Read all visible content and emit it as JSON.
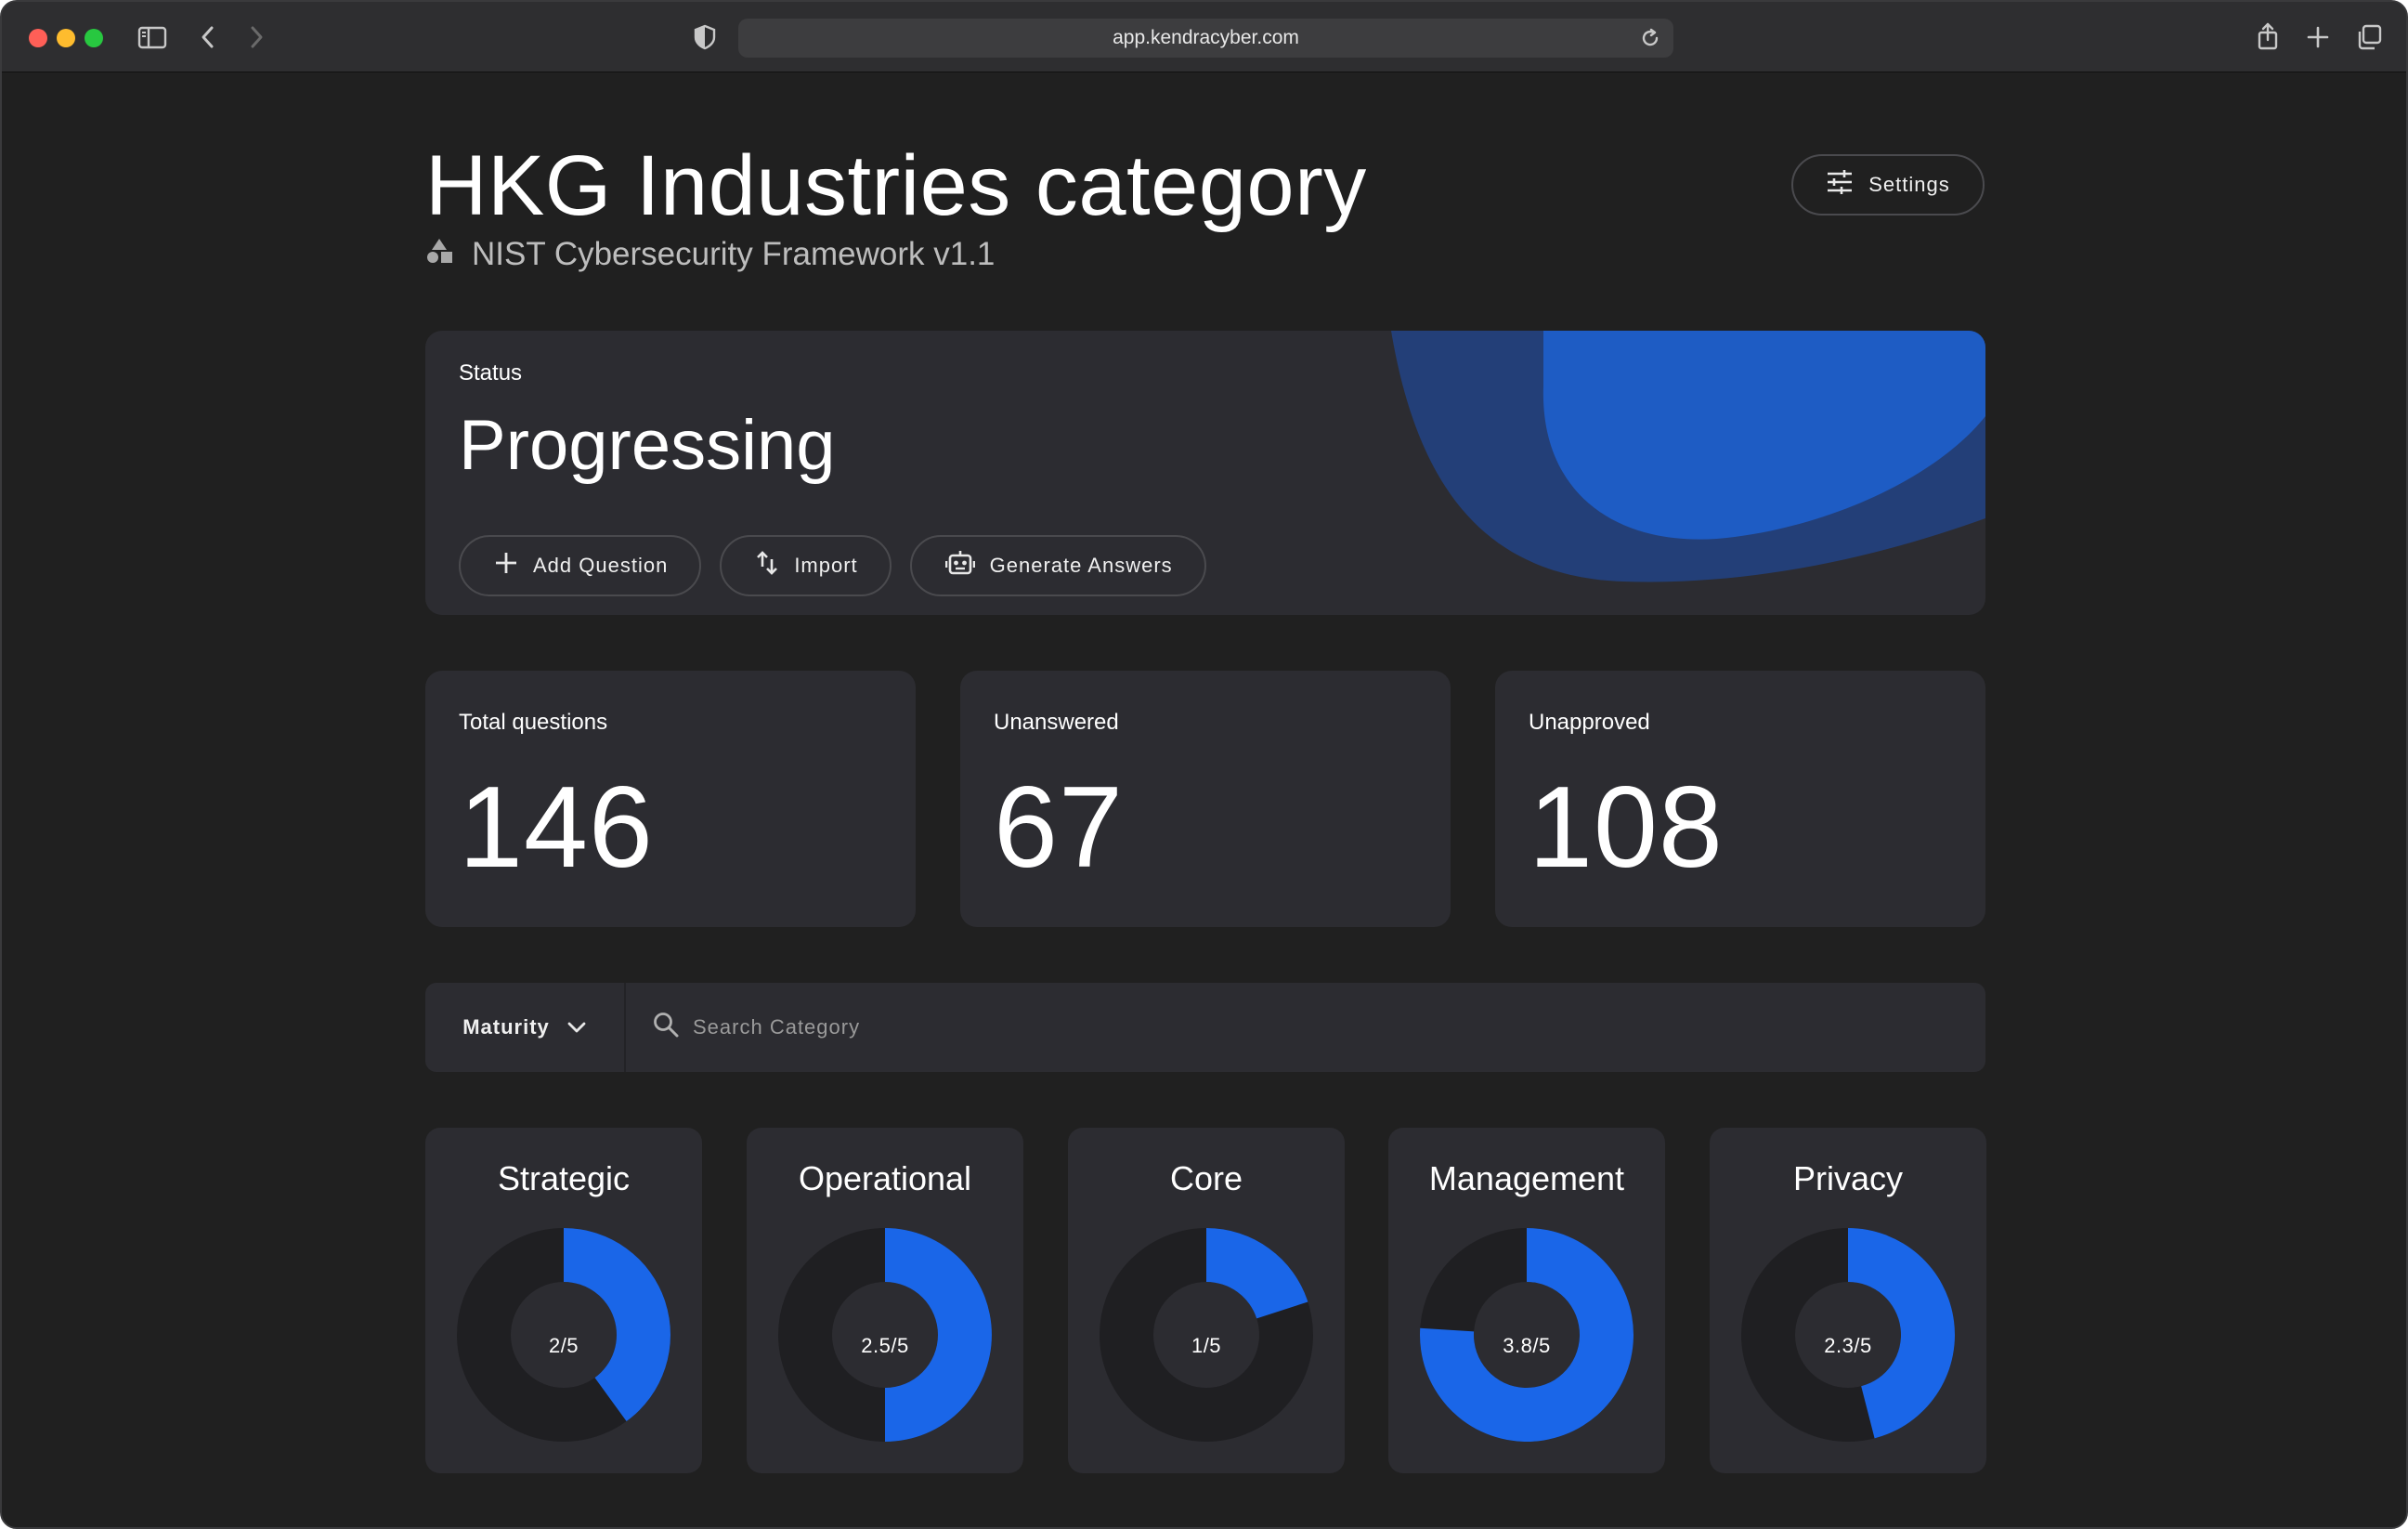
{
  "browser": {
    "url": "app.kendracyber.com"
  },
  "header": {
    "title": "HKG Industries category",
    "subtitle": "NIST Cybersecurity Framework v1.1",
    "settings_label": "Settings"
  },
  "status": {
    "label": "Status",
    "value": "Progressing",
    "actions": [
      {
        "label": "Add Question",
        "icon": "plus-icon"
      },
      {
        "label": "Import",
        "icon": "import-arrows-icon"
      },
      {
        "label": "Generate Answers",
        "icon": "robot-icon"
      }
    ]
  },
  "stats": [
    {
      "label": "Total questions",
      "value": "146"
    },
    {
      "label": "Unanswered",
      "value": "67"
    },
    {
      "label": "Unapproved",
      "value": "108"
    }
  ],
  "filter": {
    "dropdown_label": "Maturity",
    "search_placeholder": "Search Category"
  },
  "colors": {
    "accent": "#1a66e8",
    "donut_track": "#1f1f22",
    "card": "#2c2c31",
    "background": "#202020"
  },
  "categories": [
    {
      "name": "Strategic",
      "score_label": "2/5",
      "score": 2,
      "max": 5
    },
    {
      "name": "Operational",
      "score_label": "2.5/5",
      "score": 2.5,
      "max": 5
    },
    {
      "name": "Core",
      "score_label": "1/5",
      "score": 1,
      "max": 5
    },
    {
      "name": "Management",
      "score_label": "3.8/5",
      "score": 3.8,
      "max": 5
    },
    {
      "name": "Privacy",
      "score_label": "2.3/5",
      "score": 2.3,
      "max": 5
    }
  ]
}
